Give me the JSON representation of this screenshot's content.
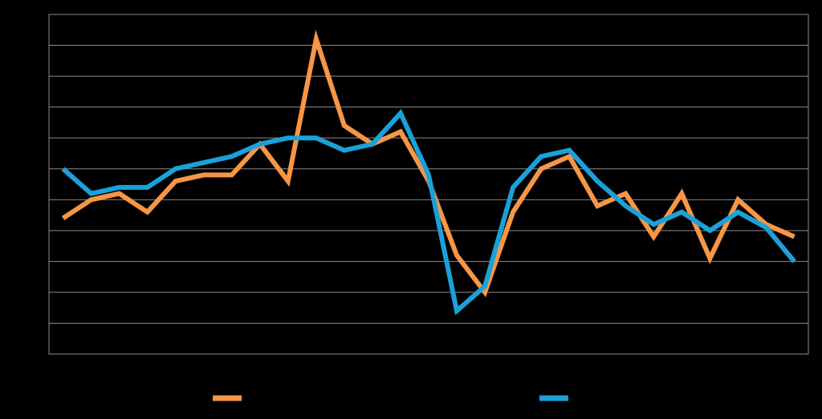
{
  "chart_data": {
    "type": "line",
    "categories": [
      null,
      null,
      null,
      null,
      null,
      null,
      null,
      null,
      null,
      null,
      null,
      null,
      null,
      null,
      null,
      null,
      null,
      null,
      null,
      null,
      null,
      null,
      null,
      null,
      null,
      null,
      null
    ],
    "series": [
      {
        "color": "#f79646",
        "values": [
          4.4,
          5.0,
          5.2,
          4.6,
          5.6,
          5.8,
          5.8,
          6.8,
          5.6,
          10.2,
          7.4,
          6.8,
          7.2,
          5.6,
          3.2,
          2.0,
          4.6,
          6.0,
          6.4,
          4.8,
          5.2,
          3.8,
          5.2,
          3.1,
          5.0,
          4.2,
          3.8
        ]
      },
      {
        "color": "#1ba1d9",
        "values": [
          6.0,
          5.2,
          5.4,
          5.4,
          6.0,
          6.2,
          6.4,
          6.8,
          7.0,
          7.0,
          6.6,
          6.8,
          7.8,
          5.8,
          1.4,
          2.2,
          5.4,
          6.4,
          6.6,
          5.6,
          4.8,
          4.2,
          4.6,
          4.0,
          4.6,
          4.1,
          3.0
        ]
      }
    ],
    "ylim": [
      0,
      11
    ],
    "yticks": [
      0,
      1,
      2,
      3,
      4,
      5,
      6,
      7,
      8,
      9,
      10,
      11
    ],
    "grid": true
  }
}
